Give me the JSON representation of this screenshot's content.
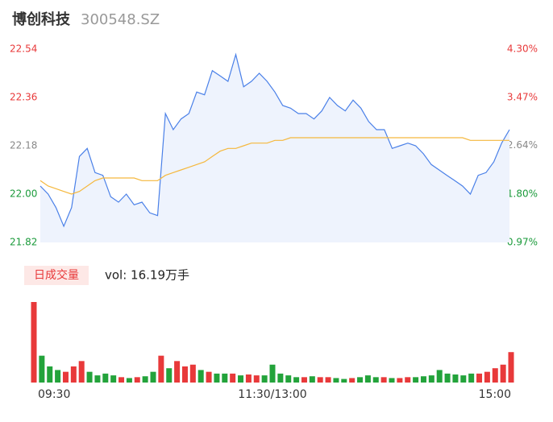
{
  "header": {
    "title": "博创科技",
    "subtitle": "300548.SZ"
  },
  "chart_data": [
    {
      "type": "line",
      "x": [
        0,
        4,
        8,
        12,
        16,
        20,
        24,
        28,
        32,
        36,
        40,
        44,
        48,
        52,
        56,
        60,
        64,
        68,
        72,
        76,
        80,
        84,
        88,
        92,
        96,
        100,
        104,
        108,
        112,
        116,
        120,
        124,
        128,
        132,
        136,
        140,
        144,
        148,
        152,
        156,
        160,
        164,
        168,
        172,
        176,
        180,
        184,
        188,
        192,
        196,
        200,
        204,
        208,
        212,
        216,
        220,
        224,
        228,
        232,
        236,
        240
      ],
      "xlim": [
        0,
        240
      ],
      "series": [
        {
          "name": "price",
          "color": "#4a80e8",
          "values": [
            22.03,
            22.0,
            21.95,
            21.88,
            21.95,
            22.14,
            22.17,
            22.08,
            22.07,
            21.99,
            21.97,
            22.0,
            21.96,
            21.97,
            21.93,
            21.92,
            22.3,
            22.24,
            22.28,
            22.3,
            22.38,
            22.37,
            22.46,
            22.44,
            22.42,
            22.52,
            22.4,
            22.42,
            22.45,
            22.42,
            22.38,
            22.33,
            22.32,
            22.3,
            22.3,
            22.28,
            22.31,
            22.36,
            22.33,
            22.31,
            22.35,
            22.32,
            22.27,
            22.24,
            22.24,
            22.17,
            22.18,
            22.19,
            22.18,
            22.15,
            22.11,
            22.09,
            22.07,
            22.05,
            22.03,
            22.0,
            22.07,
            22.08,
            22.12,
            22.19,
            22.24
          ]
        },
        {
          "name": "average",
          "color": "#f5b83d",
          "values": [
            22.05,
            22.03,
            22.02,
            22.01,
            22.0,
            22.01,
            22.03,
            22.05,
            22.06,
            22.06,
            22.06,
            22.06,
            22.06,
            22.05,
            22.05,
            22.05,
            22.07,
            22.08,
            22.09,
            22.1,
            22.11,
            22.12,
            22.14,
            22.16,
            22.17,
            22.17,
            22.18,
            22.19,
            22.19,
            22.19,
            22.2,
            22.2,
            22.21,
            22.21,
            22.21,
            22.21,
            22.21,
            22.21,
            22.21,
            22.21,
            22.21,
            22.21,
            22.21,
            22.21,
            22.21,
            22.21,
            22.21,
            22.21,
            22.21,
            22.21,
            22.21,
            22.21,
            22.21,
            22.21,
            22.21,
            22.2,
            22.2,
            22.2,
            22.2,
            22.2,
            22.2
          ]
        }
      ],
      "ylim": [
        21.82,
        22.54
      ],
      "yticks": [
        21.82,
        {
          "value": 22,
          "label": "22.00"
        },
        22.18,
        22.36,
        22.54
      ],
      "y2lim": [
        0.97,
        4.3
      ],
      "y2ticks": [
        {
          "value": 0.97,
          "label": "0.97%"
        },
        {
          "value": 1.8,
          "label": "1.80%"
        },
        {
          "value": 2.64,
          "label": "2.64%"
        },
        {
          "value": 3.47,
          "label": "3.47%"
        },
        {
          "value": 4.3,
          "label": "4.30%"
        }
      ],
      "tick_colors": [
        "#1a9a3a",
        "#1a9a3a",
        "#888888",
        "#e8393a",
        "#e8393a"
      ],
      "area_color": "#eef3fd",
      "grid": false
    },
    {
      "type": "bar",
      "legend_label": "日成交量",
      "summary": "vol: 16.19万手",
      "x": [
        0,
        4,
        8,
        12,
        16,
        20,
        24,
        28,
        32,
        36,
        40,
        44,
        48,
        52,
        56,
        60,
        64,
        68,
        72,
        76,
        80,
        84,
        88,
        92,
        96,
        100,
        104,
        108,
        112,
        116,
        120,
        124,
        128,
        132,
        136,
        140,
        144,
        148,
        152,
        156,
        160,
        164,
        168,
        172,
        176,
        180,
        184,
        188,
        192,
        196,
        200,
        204,
        208,
        212,
        216,
        220,
        224,
        228,
        232,
        236,
        240
      ],
      "xlim": [
        0,
        240
      ],
      "xticks": [
        {
          "value": 0,
          "label": "09:30"
        },
        {
          "value": 120,
          "label": "11:30/13:00"
        },
        {
          "value": 240,
          "label": "15:00"
        }
      ],
      "values": [
        4500,
        1500,
        900,
        700,
        600,
        900,
        1200,
        600,
        400,
        500,
        400,
        300,
        250,
        300,
        350,
        600,
        1500,
        800,
        1200,
        900,
        1000,
        700,
        600,
        500,
        500,
        500,
        400,
        450,
        400,
        400,
        1000,
        500,
        400,
        300,
        300,
        350,
        300,
        300,
        250,
        200,
        250,
        300,
        400,
        300,
        300,
        250,
        250,
        300,
        300,
        350,
        400,
        700,
        500,
        450,
        400,
        500,
        500,
        600,
        800,
        1000,
        1700
      ],
      "ylim": [
        0,
        4500
      ],
      "color_up": "#e8393a",
      "color_down": "#23a33b"
    }
  ]
}
